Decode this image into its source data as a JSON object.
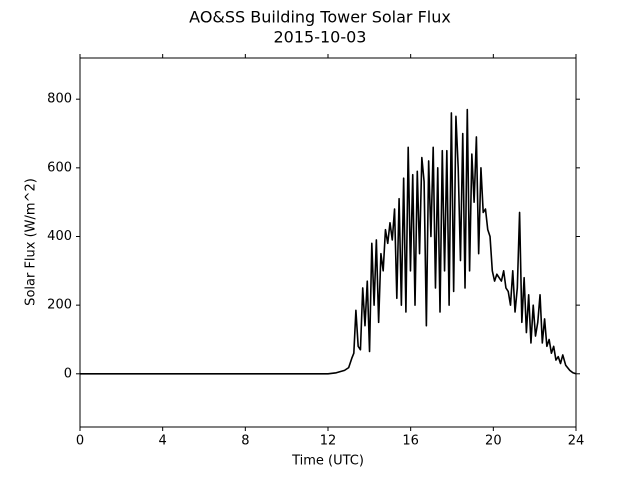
{
  "chart_data": {
    "type": "line",
    "title": "AO&SS Building Tower Solar Flux",
    "subtitle": "2015-10-03",
    "x_label": "Time (UTC)",
    "y_label": "Solar Flux (W/m^2)",
    "color": "#000000",
    "xlim": [
      0,
      24
    ],
    "xticks": [
      0,
      4,
      8,
      12,
      16,
      20,
      24
    ],
    "ylim": [
      -155,
      920
    ],
    "yticks": [
      0,
      200,
      400,
      600,
      800
    ],
    "grid": false,
    "x": [
      0,
      12.0,
      12.4,
      12.8,
      13.0,
      13.15,
      13.25,
      13.35,
      13.46,
      13.57,
      13.68,
      13.79,
      13.9,
      14.01,
      14.12,
      14.23,
      14.34,
      14.45,
      14.56,
      14.67,
      14.78,
      14.89,
      15.0,
      15.11,
      15.22,
      15.33,
      15.44,
      15.55,
      15.66,
      15.77,
      15.88,
      15.99,
      16.1,
      16.21,
      16.32,
      16.43,
      16.54,
      16.65,
      16.76,
      16.87,
      16.98,
      17.09,
      17.2,
      17.31,
      17.42,
      17.53,
      17.64,
      17.75,
      17.86,
      17.97,
      18.08,
      18.19,
      18.3,
      18.41,
      18.52,
      18.63,
      18.74,
      18.85,
      18.96,
      19.07,
      19.18,
      19.29,
      19.4,
      19.51,
      19.62,
      19.73,
      19.84,
      19.95,
      20.06,
      20.17,
      20.28,
      20.39,
      20.5,
      20.61,
      20.72,
      20.83,
      20.94,
      21.05,
      21.16,
      21.27,
      21.38,
      21.49,
      21.6,
      21.71,
      21.82,
      21.93,
      22.04,
      22.15,
      22.26,
      22.37,
      22.48,
      22.59,
      22.7,
      22.81,
      22.92,
      23.03,
      23.14,
      23.25,
      23.36,
      23.5,
      23.7,
      23.85,
      24
    ],
    "values": [
      0,
      0,
      3,
      10,
      18,
      45,
      60,
      185,
      80,
      70,
      250,
      140,
      270,
      65,
      380,
      200,
      390,
      150,
      350,
      300,
      420,
      380,
      440,
      390,
      480,
      220,
      510,
      200,
      570,
      180,
      660,
      300,
      580,
      200,
      590,
      350,
      630,
      560,
      140,
      620,
      400,
      660,
      250,
      600,
      180,
      650,
      300,
      650,
      200,
      760,
      240,
      750,
      600,
      330,
      700,
      250,
      770,
      300,
      640,
      500,
      690,
      350,
      600,
      470,
      480,
      420,
      400,
      300,
      270,
      290,
      280,
      270,
      300,
      250,
      240,
      200,
      300,
      180,
      250,
      470,
      150,
      280,
      120,
      230,
      90,
      200,
      110,
      150,
      230,
      90,
      160,
      80,
      100,
      60,
      80,
      40,
      50,
      30,
      55,
      25,
      10,
      3,
      0
    ]
  }
}
